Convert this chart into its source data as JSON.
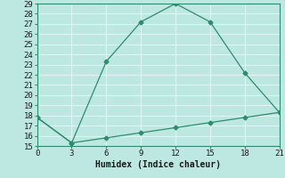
{
  "xlabel": "Humidex (Indice chaleur)",
  "line1_x": [
    0,
    3,
    6,
    9,
    12,
    15,
    18,
    21
  ],
  "line1_y": [
    17.8,
    15.3,
    23.3,
    27.2,
    29.0,
    27.2,
    22.2,
    18.3
  ],
  "line2_x": [
    0,
    3,
    6,
    9,
    12,
    15,
    18,
    21
  ],
  "line2_y": [
    17.8,
    15.3,
    15.8,
    16.3,
    16.8,
    17.3,
    17.8,
    18.3
  ],
  "line_color": "#2e8b6b",
  "bg_color": "#bde8e2",
  "grid_color": "#e0f5f3",
  "xlim": [
    0,
    21
  ],
  "ylim": [
    15,
    29
  ],
  "xticks": [
    0,
    3,
    6,
    9,
    12,
    15,
    18,
    21
  ],
  "yticks": [
    15,
    16,
    17,
    18,
    19,
    20,
    21,
    22,
    23,
    24,
    25,
    26,
    27,
    28,
    29
  ],
  "label_fontsize": 7,
  "tick_fontsize": 6.5
}
